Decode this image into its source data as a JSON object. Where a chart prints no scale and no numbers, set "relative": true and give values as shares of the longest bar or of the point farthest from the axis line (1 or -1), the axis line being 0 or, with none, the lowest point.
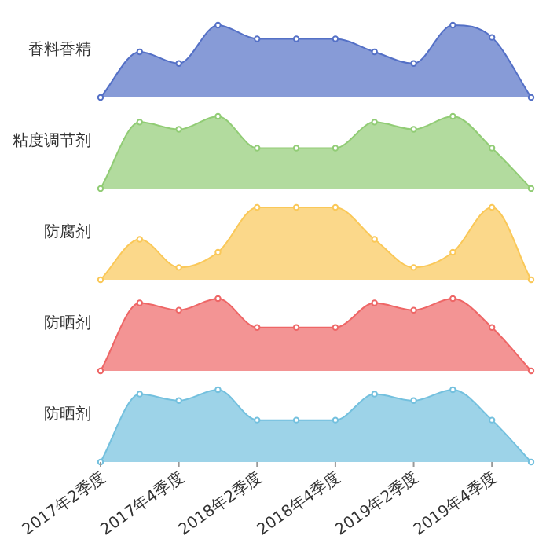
{
  "chart_data": [
    {
      "type": "area",
      "relative": true,
      "tick_labels": false,
      "marker": "circle",
      "categories": [
        null,
        null,
        null,
        null,
        null,
        null,
        null,
        null,
        null,
        null,
        null,
        null
      ],
      "series": [
        {
          "name": "香料香精",
          "color": "#5470c6",
          "values": [
            0,
            0.63,
            0.47,
            1,
            0.81,
            0.81,
            0.81,
            0.63,
            0.47,
            1,
            0.83,
            0
          ]
        }
      ]
    },
    {
      "type": "area",
      "relative": true,
      "tick_labels": false,
      "marker": "circle",
      "categories": [
        null,
        null,
        null,
        null,
        null,
        null,
        null,
        null,
        null,
        null,
        null,
        null
      ],
      "series": [
        {
          "name": "粘度调节剂",
          "color": "#91cc75",
          "values": [
            0,
            0.92,
            0.82,
            1,
            0.56,
            0.56,
            0.56,
            0.92,
            0.82,
            1,
            0.56,
            0
          ]
        }
      ]
    },
    {
      "type": "area",
      "relative": true,
      "tick_labels": false,
      "marker": "circle",
      "categories": [
        null,
        null,
        null,
        null,
        null,
        null,
        null,
        null,
        null,
        null,
        null,
        null
      ],
      "series": [
        {
          "name": "防腐剂",
          "color": "#fac858",
          "values": [
            0,
            0.56,
            0.17,
            0.38,
            1,
            1,
            1,
            0.56,
            0.17,
            0.38,
            1,
            0
          ]
        }
      ]
    },
    {
      "type": "area",
      "relative": true,
      "tick_labels": false,
      "marker": "circle",
      "categories": [
        null,
        null,
        null,
        null,
        null,
        null,
        null,
        null,
        null,
        null,
        null,
        null
      ],
      "series": [
        {
          "name": "防晒剂",
          "color": "#ee6666",
          "values": [
            0,
            0.94,
            0.84,
            1,
            0.6,
            0.6,
            0.6,
            0.94,
            0.84,
            1,
            0.6,
            0
          ]
        }
      ]
    },
    {
      "type": "area",
      "relative": true,
      "tick_labels": "x",
      "marker": "circle",
      "categories": [
        "2017年2季度",
        null,
        "2017年4季度",
        null,
        "2018年2季度",
        null,
        "2018年4季度",
        null,
        "2019年2季度",
        null,
        "2019年4季度",
        null
      ],
      "series": [
        {
          "name": "防晒剂",
          "color": "#73c0de",
          "values": [
            0,
            0.94,
            0.85,
            1,
            0.58,
            0.58,
            0.58,
            0.94,
            0.85,
            1,
            0.58,
            0
          ]
        }
      ]
    }
  ]
}
